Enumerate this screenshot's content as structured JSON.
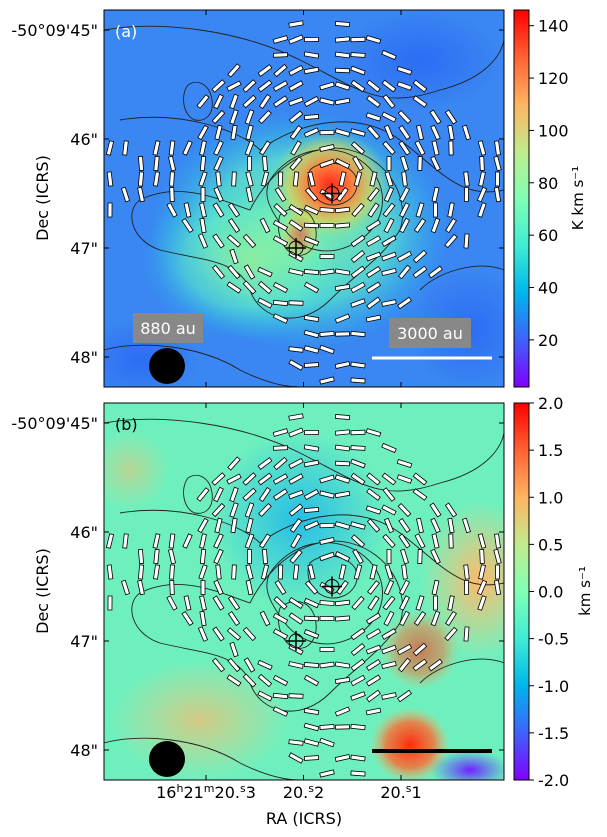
{
  "figure": {
    "xlabel": "RA (ICRS)",
    "ylabel": "Dec (ICRS)",
    "xticks": [
      {
        "value": 0.0,
        "h": "16",
        "m": "21",
        "sec": "20.3",
        "show_hm": true
      },
      {
        "value": 0.5,
        "h": "",
        "m": "",
        "sec": "20.2",
        "show_hm": false
      },
      {
        "value": 1.0,
        "h": "",
        "m": "",
        "sec": "20.1",
        "show_hm": false
      }
    ],
    "yticks": [
      {
        "value": 0,
        "label": "-50°09'45\""
      },
      {
        "value": 1,
        "label": "46\""
      },
      {
        "value": 2,
        "label": "47\""
      },
      {
        "value": 3,
        "label": "48\""
      }
    ],
    "markers": [
      {
        "x": 0.48,
        "y": 2.0
      },
      {
        "x": 0.57,
        "y": 1.5
      }
    ]
  },
  "chart_data": [
    {
      "type": "heatmap",
      "panel": "(a)",
      "colorbar": {
        "ticks": [
          20,
          40,
          60,
          80,
          100,
          120,
          140
        ],
        "tick_labels": [
          "20",
          "40",
          "60",
          "80",
          "100",
          "120",
          "140"
        ],
        "range": [
          2,
          146
        ],
        "unit_label": "K km s⁻¹",
        "colormap": "rainbow"
      },
      "annotations": {
        "beam_label": "880 au",
        "scale_label": "3000 au"
      }
    },
    {
      "type": "heatmap",
      "panel": "(b)",
      "colorbar": {
        "ticks": [
          -2.0,
          -1.5,
          -1.0,
          -0.5,
          0.0,
          0.5,
          1.0,
          1.5,
          2.0
        ],
        "tick_labels": [
          "-2.0",
          "-1.5",
          "-1.0",
          "-0.5",
          "0.0",
          "0.5",
          "1.0",
          "1.5",
          "2.0"
        ],
        "range": [
          -2.0,
          2.0
        ],
        "unit_label": "km s⁻¹",
        "colormap": "rainbow"
      },
      "annotations": {}
    }
  ]
}
